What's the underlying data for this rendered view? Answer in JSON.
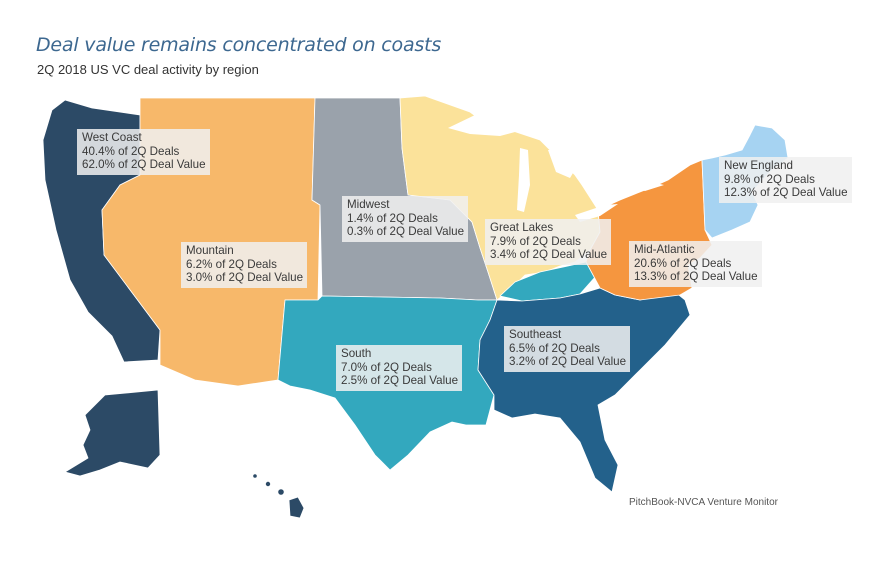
{
  "title": "Deal value remains concentrated on coasts",
  "subtitle": "2Q 2018 US VC deal activity by region",
  "source": "PitchBook-NVCA Venture Monitor",
  "colors": {
    "west_coast": "#2c4a66",
    "mountain": "#f7b86a",
    "midwest": "#9aa2ab",
    "great_lakes": "#fbe29a",
    "mid_atlantic": "#f5963f",
    "new_england": "#a6d3f2",
    "south": "#33a8be",
    "southeast": "#23618b",
    "state_border": "#ffffff"
  },
  "regions": [
    {
      "id": "west-coast",
      "name": "West Coast",
      "deals": "40.4% of 2Q Deals",
      "value": "62.0% of 2Q Deal Value"
    },
    {
      "id": "mountain",
      "name": "Mountain",
      "deals": "6.2% of 2Q Deals",
      "value": "3.0% of 2Q Deal Value"
    },
    {
      "id": "midwest",
      "name": "Midwest",
      "deals": "1.4% of 2Q Deals",
      "value": "0.3% of 2Q Deal Value"
    },
    {
      "id": "great-lakes",
      "name": "Great Lakes",
      "deals": "7.9% of 2Q Deals",
      "value": "3.4% of 2Q Deal Value"
    },
    {
      "id": "new-england",
      "name": "New England",
      "deals": "9.8% of 2Q Deals",
      "value": "12.3% of 2Q Deal Value"
    },
    {
      "id": "mid-atlantic",
      "name": "Mid-Atlantic",
      "deals": "20.6% of 2Q Deals",
      "value": "13.3% of 2Q Deal Value"
    },
    {
      "id": "south",
      "name": "South",
      "deals": "7.0% of 2Q Deals",
      "value": "2.5% of 2Q Deal Value"
    },
    {
      "id": "southeast",
      "name": "Southeast",
      "deals": "6.5% of 2Q Deals",
      "value": "3.2% of 2Q Deal Value"
    }
  ]
}
